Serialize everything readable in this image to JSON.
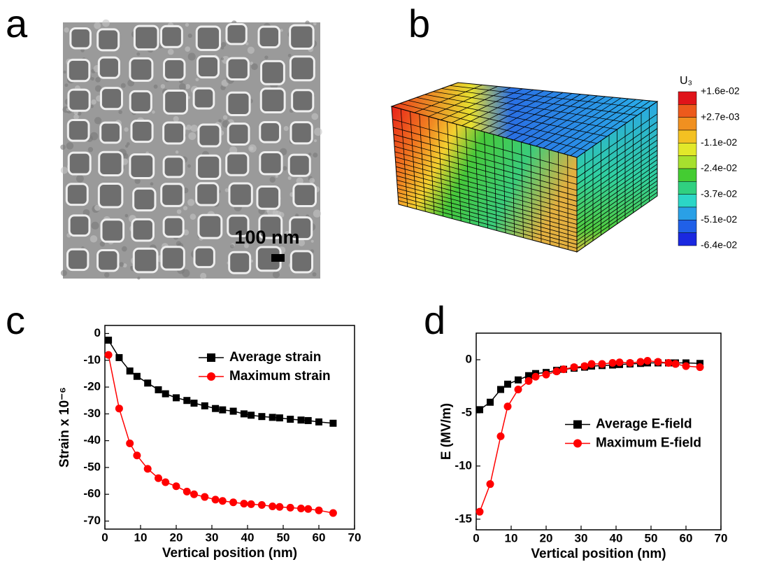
{
  "panel_labels": [
    "a",
    "b",
    "c",
    "d"
  ],
  "sem_image": {
    "scale_bar": "100 nm"
  },
  "contour": {
    "title": "U₃",
    "labels": [
      "+1.6e-02",
      "+2.7e-03",
      "-1.1e-02",
      "-2.4e-02",
      "-3.7e-02",
      "-5.1e-02",
      "-6.4e-02"
    ],
    "colors": [
      "#e0141a",
      "#ec5a1c",
      "#f09020",
      "#f3c122",
      "#e2e82a",
      "#a6e02e",
      "#44cc32",
      "#30d080",
      "#2cd6c6",
      "#2aa0e6",
      "#2060e8",
      "#1a28e0"
    ]
  },
  "chart_data": [
    {
      "type": "line",
      "xlabel": "Vertical position (nm)",
      "ylabel": "Strain x 10⁻⁶",
      "legend": "upper right",
      "x": [
        1,
        4,
        7,
        9,
        12,
        15,
        17,
        20,
        23,
        25,
        28,
        31,
        33,
        36,
        39,
        41,
        44,
        47,
        49,
        52,
        55,
        57,
        60,
        64
      ],
      "series": [
        {
          "name": "Average strain",
          "color": "#000000",
          "marker": "square",
          "values": [
            -2.5,
            -9,
            -14,
            -16,
            -18.5,
            -21,
            -22.5,
            -24,
            -25,
            -26,
            -27,
            -28,
            -28.5,
            -29,
            -30,
            -30.5,
            -31,
            -31.3,
            -31.5,
            -32,
            -32.3,
            -32.5,
            -33,
            -33.5
          ]
        },
        {
          "name": "Maximum strain",
          "color": "#ff0000",
          "marker": "circle",
          "values": [
            -8,
            -28,
            -41,
            -45.5,
            -50.5,
            -54,
            -55.5,
            -57,
            -59,
            -60,
            -61,
            -62,
            -62.5,
            -63,
            -63.5,
            -63.7,
            -64,
            -64.5,
            -64.7,
            -65,
            -65.3,
            -65.5,
            -66,
            -67
          ]
        }
      ],
      "xlim": [
        0,
        70
      ],
      "xticks": [
        0,
        10,
        20,
        30,
        40,
        50,
        60,
        70
      ],
      "ylim": [
        -73,
        3
      ],
      "yticks": [
        0,
        -10,
        -20,
        -30,
        -40,
        -50,
        -60,
        -70
      ]
    },
    {
      "type": "line",
      "xlabel": "Vertical position (nm)",
      "ylabel": "E (MV/m)",
      "legend": "center right",
      "x": [
        1,
        4,
        7,
        9,
        12,
        15,
        17,
        20,
        23,
        25,
        28,
        31,
        33,
        36,
        39,
        41,
        44,
        47,
        49,
        52,
        55,
        57,
        60,
        64
      ],
      "series": [
        {
          "name": "Average E-field",
          "color": "#000000",
          "marker": "square",
          "values": [
            -4.7,
            -4,
            -2.8,
            -2.3,
            -1.9,
            -1.5,
            -1.3,
            -1.2,
            -1,
            -0.9,
            -0.8,
            -0.7,
            -0.6,
            -0.55,
            -0.5,
            -0.45,
            -0.4,
            -0.35,
            -0.3,
            -0.3,
            -0.3,
            -0.3,
            -0.3,
            -0.35
          ]
        },
        {
          "name": "Maximum E-field",
          "color": "#ff0000",
          "marker": "circle",
          "values": [
            -14.3,
            -11.7,
            -7.2,
            -4.4,
            -2.8,
            -2,
            -1.6,
            -1.4,
            -1.1,
            -0.9,
            -0.7,
            -0.6,
            -0.4,
            -0.4,
            -0.3,
            -0.25,
            -0.3,
            -0.2,
            -0.1,
            -0.2,
            -0.3,
            -0.4,
            -0.6,
            -0.7
          ]
        }
      ],
      "xlim": [
        0,
        70
      ],
      "xticks": [
        0,
        10,
        20,
        30,
        40,
        50,
        60,
        70
      ],
      "ylim": [
        -16,
        2.5
      ],
      "yticks": [
        0,
        -5,
        -10,
        -15
      ]
    }
  ]
}
